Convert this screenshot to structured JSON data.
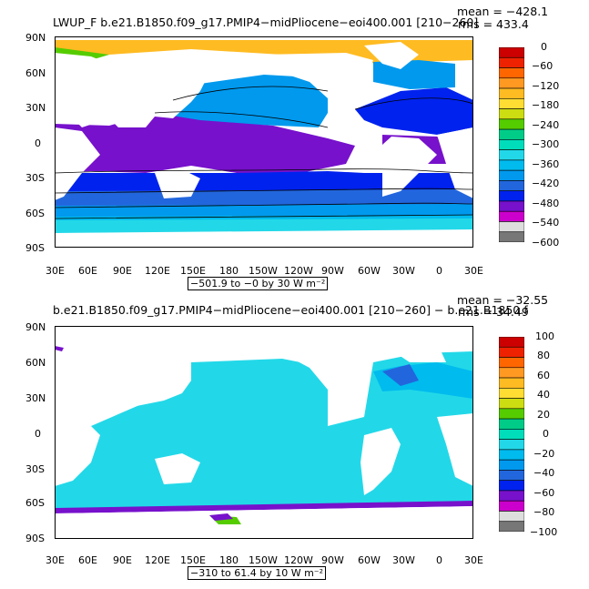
{
  "top_panel": {
    "title": "LWUP_F  b.e21.B1850.f09_g17.PMIP4−midPliocene−eoi400.001  [210−260]",
    "mean_text": "mean = −428.1",
    "rms_text": "rms = 433.4",
    "range_text": "−501.9 to −0 by 30  W m⁻²",
    "lat_labels": [
      "90N",
      "60N",
      "30N",
      "0",
      "30S",
      "60S",
      "90S"
    ],
    "lon_labels": [
      "30E",
      "60E",
      "90E",
      "120E",
      "150E",
      "180",
      "150W",
      "120W",
      "90W",
      "60W",
      "30W",
      "0",
      "30E"
    ],
    "colorbar_labels": [
      "0",
      "−60",
      "−120",
      "−180",
      "−240",
      "−300",
      "−360",
      "−420",
      "−480",
      "−540",
      "−600"
    ],
    "colorbar_colors": [
      "#cc0000",
      "#ee2200",
      "#ff6600",
      "#ff9922",
      "#ffbb22",
      "#ffdd33",
      "#ccdd11",
      "#55cc00",
      "#00cc88",
      "#00ddbb",
      "#22d8e8",
      "#00bbee",
      "#0099ee",
      "#2266dd",
      "#0022ee",
      "#7711cc",
      "#cc00cc",
      "#dddddd",
      "#777777"
    ]
  },
  "bottom_panel": {
    "title": "b.e21.B1850.f09_g17.PMIP4−midPliocene−eoi400.001  [210−260] − b.e21.B1850.f",
    "mean_text": "mean = −32.55",
    "rms_text": "rms = 34.49",
    "range_text": "−310 to 61.4 by 10  W m⁻²",
    "lat_labels": [
      "90N",
      "60N",
      "30N",
      "0",
      "30S",
      "60S",
      "90S"
    ],
    "lon_labels": [
      "30E",
      "60E",
      "90E",
      "120E",
      "150E",
      "180",
      "150W",
      "120W",
      "90W",
      "60W",
      "30W",
      "0",
      "30E"
    ],
    "colorbar_labels": [
      "100",
      "80",
      "60",
      "40",
      "20",
      "0",
      "−20",
      "−40",
      "−60",
      "−80",
      "−100"
    ],
    "colorbar_colors": [
      "#cc0000",
      "#ee2200",
      "#ff6600",
      "#ff9922",
      "#ffbb22",
      "#ffdd33",
      "#ccdd11",
      "#55cc00",
      "#00cc88",
      "#00ddbb",
      "#22d8e8",
      "#00bbee",
      "#0099ee",
      "#2266dd",
      "#0022ee",
      "#7711cc",
      "#cc00cc",
      "#dddddd",
      "#777777"
    ]
  }
}
